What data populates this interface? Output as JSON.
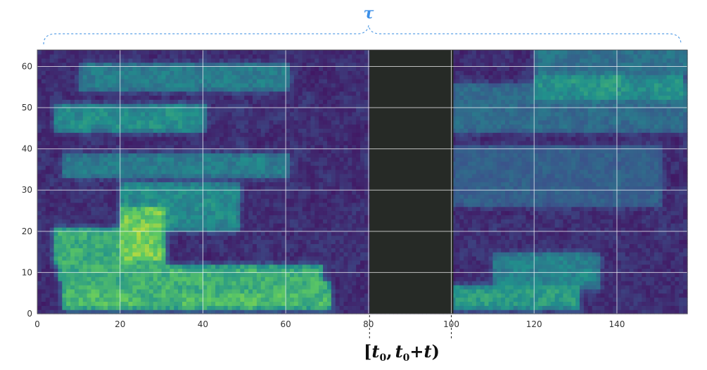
{
  "chart_data": {
    "type": "heatmap",
    "x_ticks": [
      "0",
      "20",
      "40",
      "60",
      "80",
      "100",
      "120",
      "140"
    ],
    "y_ticks": [
      "0",
      "10",
      "20",
      "30",
      "40",
      "50",
      "60"
    ],
    "xlim": [
      0,
      157
    ],
    "ylim": [
      0,
      64
    ],
    "grid": true,
    "colormap": [
      "#440154",
      "#3b528b",
      "#21918c",
      "#5ec962",
      "#fde725"
    ],
    "masked_region": {
      "x_start": 76,
      "x_end": 100,
      "color": "#262a26"
    },
    "annotations": {
      "tau_label": "τ",
      "interval_label": "[t0, t0+t)",
      "interval_open": "[",
      "interval_t0": "t",
      "interval_sub0": "0",
      "interval_comma": ",",
      "interval_t0b": "t",
      "interval_sub0b": "0",
      "interval_plus": "+t",
      "interval_close": ")"
    },
    "intensity_bands": [
      {
        "y": [
          1,
          4
        ],
        "x": [
          6,
          70
        ],
        "level": 0.78
      },
      {
        "y": [
          5,
          7
        ],
        "x": [
          6,
          70
        ],
        "level": 0.72
      },
      {
        "y": [
          8,
          11
        ],
        "x": [
          5,
          68
        ],
        "level": 0.72
      },
      {
        "y": [
          12,
          20
        ],
        "x": [
          4,
          30
        ],
        "level": 0.7
      },
      {
        "y": [
          13,
          25
        ],
        "x": [
          20,
          30
        ],
        "level": 0.88
      },
      {
        "y": [
          20,
          31
        ],
        "x": [
          20,
          48
        ],
        "level": 0.55
      },
      {
        "y": [
          1,
          6
        ],
        "x": [
          100,
          130
        ],
        "level": 0.62
      },
      {
        "y": [
          6,
          14
        ],
        "x": [
          110,
          135
        ],
        "level": 0.5
      },
      {
        "y": [
          33,
          38
        ],
        "x": [
          6,
          60
        ],
        "level": 0.48
      },
      {
        "y": [
          44,
          50
        ],
        "x": [
          4,
          40
        ],
        "level": 0.55
      },
      {
        "y": [
          44,
          55
        ],
        "x": [
          100,
          157
        ],
        "level": 0.4
      },
      {
        "y": [
          52,
          57
        ],
        "x": [
          120,
          155
        ],
        "level": 0.58
      },
      {
        "y": [
          54,
          60
        ],
        "x": [
          10,
          60
        ],
        "level": 0.48
      },
      {
        "y": [
          58,
          63
        ],
        "x": [
          120,
          157
        ],
        "level": 0.42
      },
      {
        "y": [
          26,
          40
        ],
        "x": [
          100,
          150
        ],
        "level": 0.35
      }
    ]
  }
}
